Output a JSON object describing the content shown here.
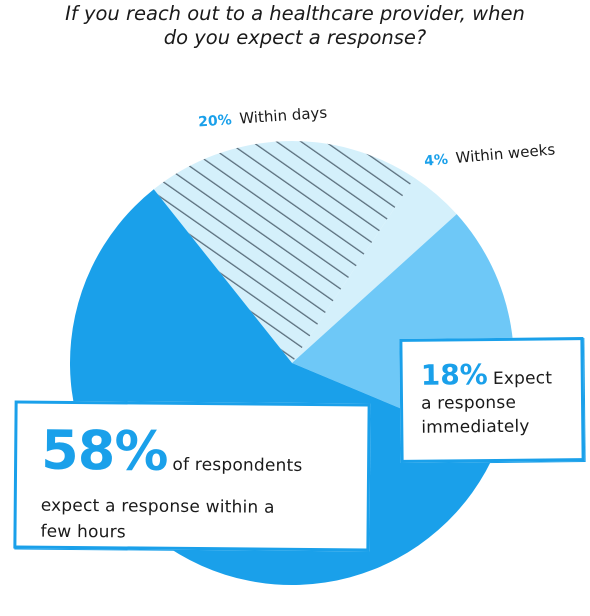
{
  "title": {
    "line1": "If you reach out to a healthcare provider, when",
    "line2": "do you expect a response?"
  },
  "chart_data": {
    "type": "pie",
    "slices": [
      {
        "label": "Within a few hours",
        "value": 58,
        "color": "#1aa0ea",
        "pattern": "none"
      },
      {
        "label": "Within days",
        "value": 20,
        "color": "#d4f0fb",
        "pattern": "hatch"
      },
      {
        "label": "Within weeks",
        "value": 4,
        "color": "#d4f0fb",
        "pattern": "none"
      },
      {
        "label": "Immediately",
        "value": 18,
        "color": "#6ec8f7",
        "pattern": "none"
      }
    ]
  },
  "labels": {
    "within_days": {
      "pct": "20%",
      "text": "Within days"
    },
    "within_weeks": {
      "pct": "4%",
      "text": "Within weeks"
    }
  },
  "callouts": {
    "immediately": {
      "pct": "18%",
      "line1": "Expect",
      "line2": "a response",
      "line3": "immediately"
    },
    "hours": {
      "pct": "58%",
      "line1": "of respondents",
      "line2": "expect a response within a",
      "line3": "few hours"
    }
  },
  "colors": {
    "accent": "#1aa0ea",
    "light": "#6ec8f7",
    "pale": "#d4f0fb",
    "hatch": "#5a6e7c"
  }
}
